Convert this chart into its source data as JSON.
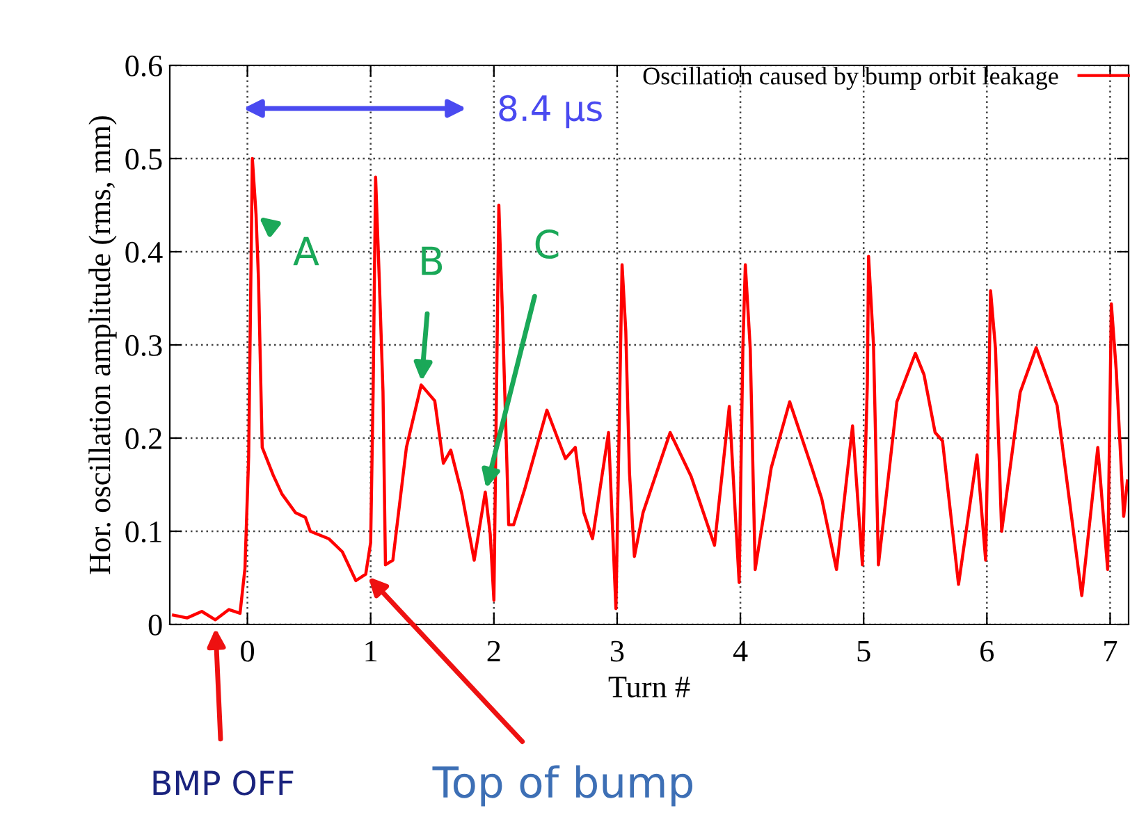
{
  "chart_data": {
    "type": "line",
    "xlabel": "Turn #",
    "ylabel": "Hor. oscillation amplitude (rms, mm)",
    "xlim": [
      -0.63,
      7.15
    ],
    "ylim": [
      0,
      0.6
    ],
    "xticks": [
      0,
      1,
      2,
      3,
      4,
      5,
      6,
      7
    ],
    "yticks": [
      0,
      0.1,
      0.2,
      0.3,
      0.4,
      0.5,
      0.6
    ],
    "grid": true,
    "legend": "top right",
    "marker": "none",
    "line_style": "solid",
    "series": [
      {
        "name": "Oscillation caused by bump orbit leakage",
        "color": "#ff0000",
        "x": [
          -0.6,
          -0.49,
          -0.37,
          -0.26,
          -0.15,
          -0.06,
          -0.02,
          0.01,
          0.04,
          0.07,
          0.09,
          0.12,
          0.21,
          0.28,
          0.39,
          0.47,
          0.51,
          0.66,
          0.77,
          0.88,
          0.96,
          1.0,
          1.02,
          1.04,
          1.07,
          1.1,
          1.12,
          1.18,
          1.29,
          1.41,
          1.52,
          1.59,
          1.65,
          1.74,
          1.84,
          1.93,
          1.97,
          2.0,
          2.04,
          2.07,
          2.12,
          2.16,
          2.25,
          2.43,
          2.58,
          2.66,
          2.73,
          2.8,
          2.93,
          2.99,
          3.04,
          3.07,
          3.1,
          3.14,
          3.21,
          3.43,
          3.6,
          3.79,
          3.91,
          3.99,
          4.02,
          4.04,
          4.08,
          4.12,
          4.25,
          4.4,
          4.58,
          4.66,
          4.78,
          4.91,
          4.99,
          5.03,
          5.04,
          5.08,
          5.12,
          5.27,
          5.42,
          5.49,
          5.58,
          5.64,
          5.77,
          5.92,
          5.99,
          6.03,
          6.07,
          6.12,
          6.27,
          6.4,
          6.57,
          6.77,
          6.9,
          6.98,
          7.01,
          7.05,
          7.11,
          7.14
        ],
        "values": [
          0.01,
          0.007,
          0.014,
          0.005,
          0.016,
          0.012,
          0.06,
          0.18,
          0.5,
          0.44,
          0.37,
          0.19,
          0.16,
          0.14,
          0.12,
          0.115,
          0.1,
          0.092,
          0.078,
          0.047,
          0.054,
          0.088,
          0.25,
          0.48,
          0.37,
          0.25,
          0.064,
          0.069,
          0.19,
          0.257,
          0.24,
          0.173,
          0.187,
          0.14,
          0.069,
          0.142,
          0.097,
          0.026,
          0.45,
          0.33,
          0.107,
          0.107,
          0.145,
          0.23,
          0.178,
          0.19,
          0.12,
          0.092,
          0.206,
          0.017,
          0.386,
          0.315,
          0.163,
          0.073,
          0.12,
          0.206,
          0.159,
          0.085,
          0.234,
          0.045,
          0.296,
          0.386,
          0.296,
          0.059,
          0.168,
          0.239,
          0.168,
          0.135,
          0.059,
          0.213,
          0.064,
          0.258,
          0.395,
          0.3,
          0.064,
          0.239,
          0.291,
          0.268,
          0.206,
          0.197,
          0.043,
          0.182,
          0.069,
          0.358,
          0.296,
          0.1,
          0.249,
          0.297,
          0.235,
          0.031,
          0.19,
          0.059,
          0.344,
          0.272,
          0.116,
          0.154
        ]
      }
    ],
    "annotations": [
      "8.4 µs",
      {
        "text": "A",
        "x": 0.07,
        "y": 0.44
      },
      {
        "text": "B",
        "x": 1.41,
        "y": 0.257
      },
      {
        "text": "C",
        "x": 1.93,
        "y": 0.142
      },
      {
        "text": "BMP OFF",
        "x": -0.26,
        "y": 0
      },
      {
        "text": "Top of bump",
        "x": 0.96,
        "y": 0.054
      }
    ]
  }
}
